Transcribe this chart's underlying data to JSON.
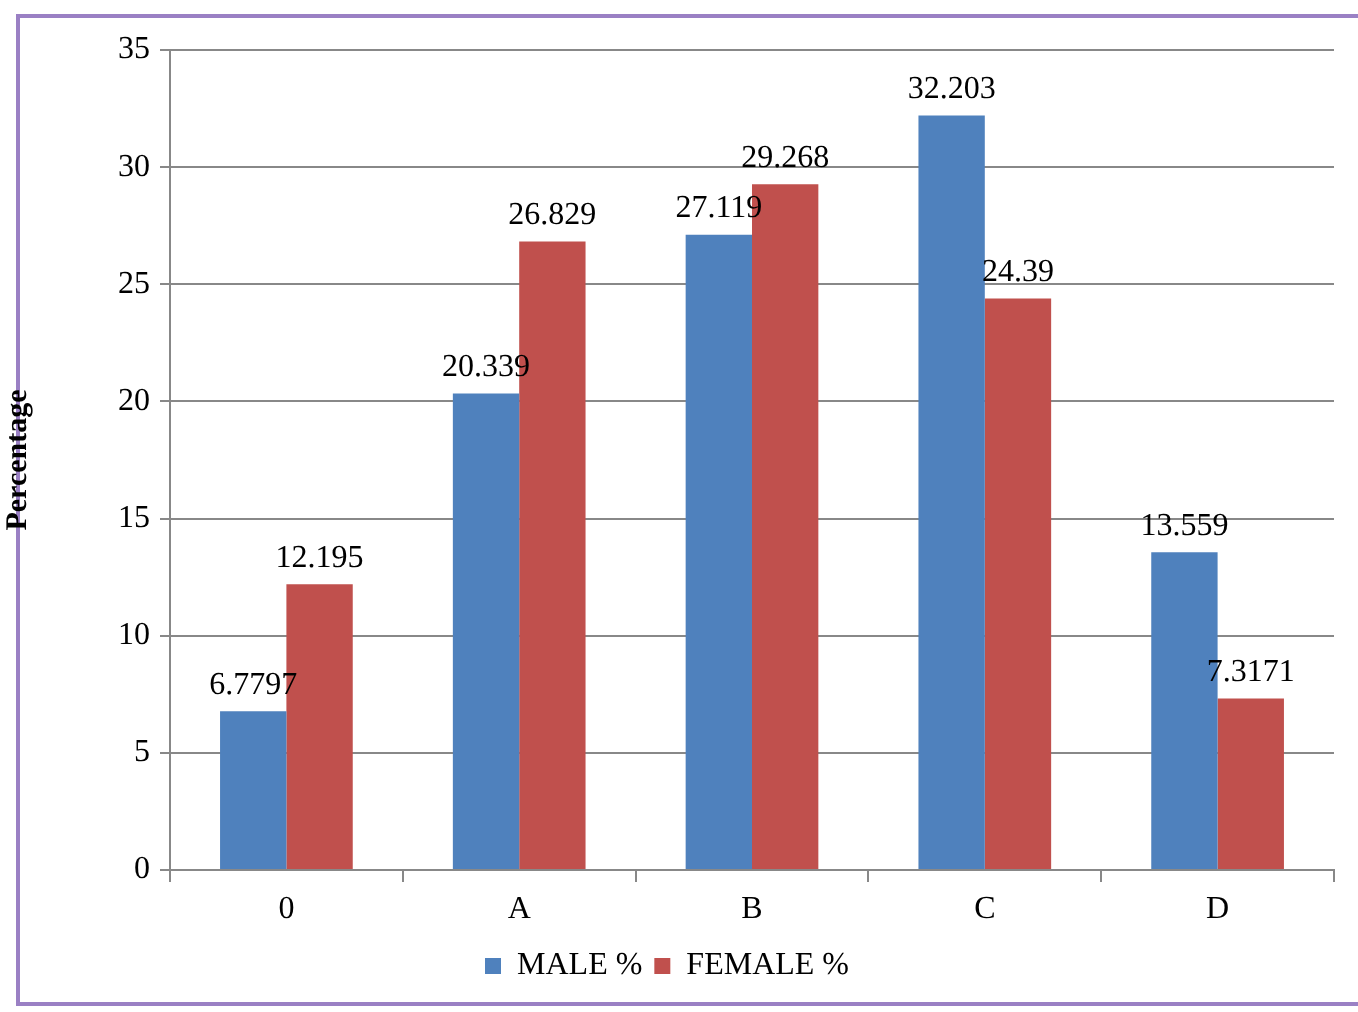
{
  "chart_data": {
    "type": "bar",
    "ylabel": "Percentage",
    "categories": [
      "0",
      "A",
      "B",
      "C",
      "D"
    ],
    "series": [
      {
        "name": "MALE %",
        "color": "#4f81bd",
        "values": [
          6.7797,
          20.339,
          27.119,
          32.203,
          13.559
        ]
      },
      {
        "name": "FEMALE %",
        "color": "#c0504d",
        "values": [
          12.195,
          26.829,
          29.268,
          24.39,
          7.3171
        ]
      }
    ],
    "ylim": [
      0,
      35
    ],
    "yticks": [
      0,
      5,
      10,
      15,
      20,
      25,
      30,
      35
    ],
    "grid": "y",
    "legend": "bottom",
    "data_labels": true
  }
}
